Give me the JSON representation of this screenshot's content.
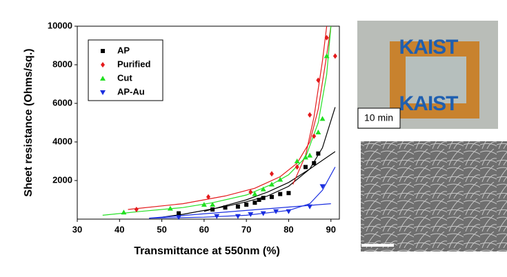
{
  "chart_data": {
    "type": "scatter",
    "xlabel": "Transmittance at 550nm (%)",
    "ylabel": "Sheet resistance (Ohms/sq.)",
    "xlim": [
      30,
      92
    ],
    "ylim": [
      0,
      10000
    ],
    "xticks": [
      30,
      40,
      50,
      60,
      70,
      80,
      90
    ],
    "yticks": [
      2000,
      4000,
      6000,
      8000,
      10000
    ],
    "series": [
      {
        "name": "AP",
        "color": "#000000",
        "marker": "square",
        "x": [
          54,
          62,
          65,
          68,
          70,
          72,
          73,
          74,
          76,
          78,
          80,
          84,
          86,
          87
        ],
        "values": [
          300,
          500,
          600,
          650,
          750,
          850,
          1000,
          1100,
          1150,
          1300,
          1350,
          2700,
          2900,
          3400
        ]
      },
      {
        "name": "Purified",
        "color": "#e41a1c",
        "marker": "diamond",
        "x": [
          44,
          61,
          71,
          76,
          82,
          85,
          86,
          87,
          89,
          91
        ],
        "values": [
          500,
          1150,
          1400,
          2350,
          2700,
          5400,
          4300,
          7200,
          9400,
          8450
        ]
      },
      {
        "name": "Cut",
        "color": "#22e022",
        "marker": "triangle-up",
        "x": [
          41,
          52,
          60,
          62,
          72,
          74,
          76,
          78,
          82,
          84,
          85,
          87,
          88,
          89
        ],
        "values": [
          350,
          550,
          750,
          750,
          1300,
          1550,
          1800,
          2050,
          3000,
          3200,
          3300,
          4500,
          5200,
          8450
        ]
      },
      {
        "name": "AP-Au",
        "color": "#1a2ee0",
        "marker": "triangle-down",
        "x": [
          54,
          63,
          68,
          71,
          74,
          77,
          80,
          85,
          88
        ],
        "values": [
          100,
          150,
          150,
          250,
          300,
          400,
          400,
          650,
          1700
        ]
      }
    ],
    "fits": [
      {
        "color": "#000000",
        "x": [
          50,
          55,
          60,
          65,
          70,
          75,
          80,
          85,
          88,
          91
        ],
        "values": [
          100,
          250,
          450,
          650,
          900,
          1200,
          1700,
          2600,
          3700,
          5800
        ]
      },
      {
        "color": "#000000",
        "x": [
          60,
          65,
          70,
          75,
          80,
          85,
          91
        ],
        "values": [
          400,
          700,
          1000,
          1400,
          1900,
          2600,
          3500
        ]
      },
      {
        "color": "#e41a1c",
        "x": [
          42,
          55,
          65,
          72,
          78,
          82,
          85,
          87,
          89,
          90
        ],
        "values": [
          500,
          800,
          1200,
          1600,
          2200,
          2900,
          4000,
          5700,
          8500,
          10000
        ]
      },
      {
        "color": "#e41a1c",
        "x": [
          81,
          84,
          86,
          88,
          89
        ],
        "values": [
          1800,
          3300,
          5300,
          8200,
          10000
        ]
      },
      {
        "color": "#22e022",
        "x": [
          36,
          45,
          55,
          62,
          70,
          76,
          80,
          84,
          87,
          89,
          90
        ],
        "values": [
          200,
          400,
          600,
          850,
          1250,
          1800,
          2300,
          3200,
          5000,
          7500,
          10000
        ]
      },
      {
        "color": "#1a2ee0",
        "x": [
          47,
          60,
          70,
          80,
          85,
          88,
          91
        ],
        "values": [
          50,
          100,
          200,
          450,
          800,
          1500,
          2700
        ]
      },
      {
        "color": "#1a2ee0",
        "x": [
          47,
          90
        ],
        "values": [
          50,
          800
        ]
      }
    ]
  },
  "photos": {
    "logo_text": [
      "KAIST",
      "KAIST"
    ],
    "time_label": "10 min"
  }
}
